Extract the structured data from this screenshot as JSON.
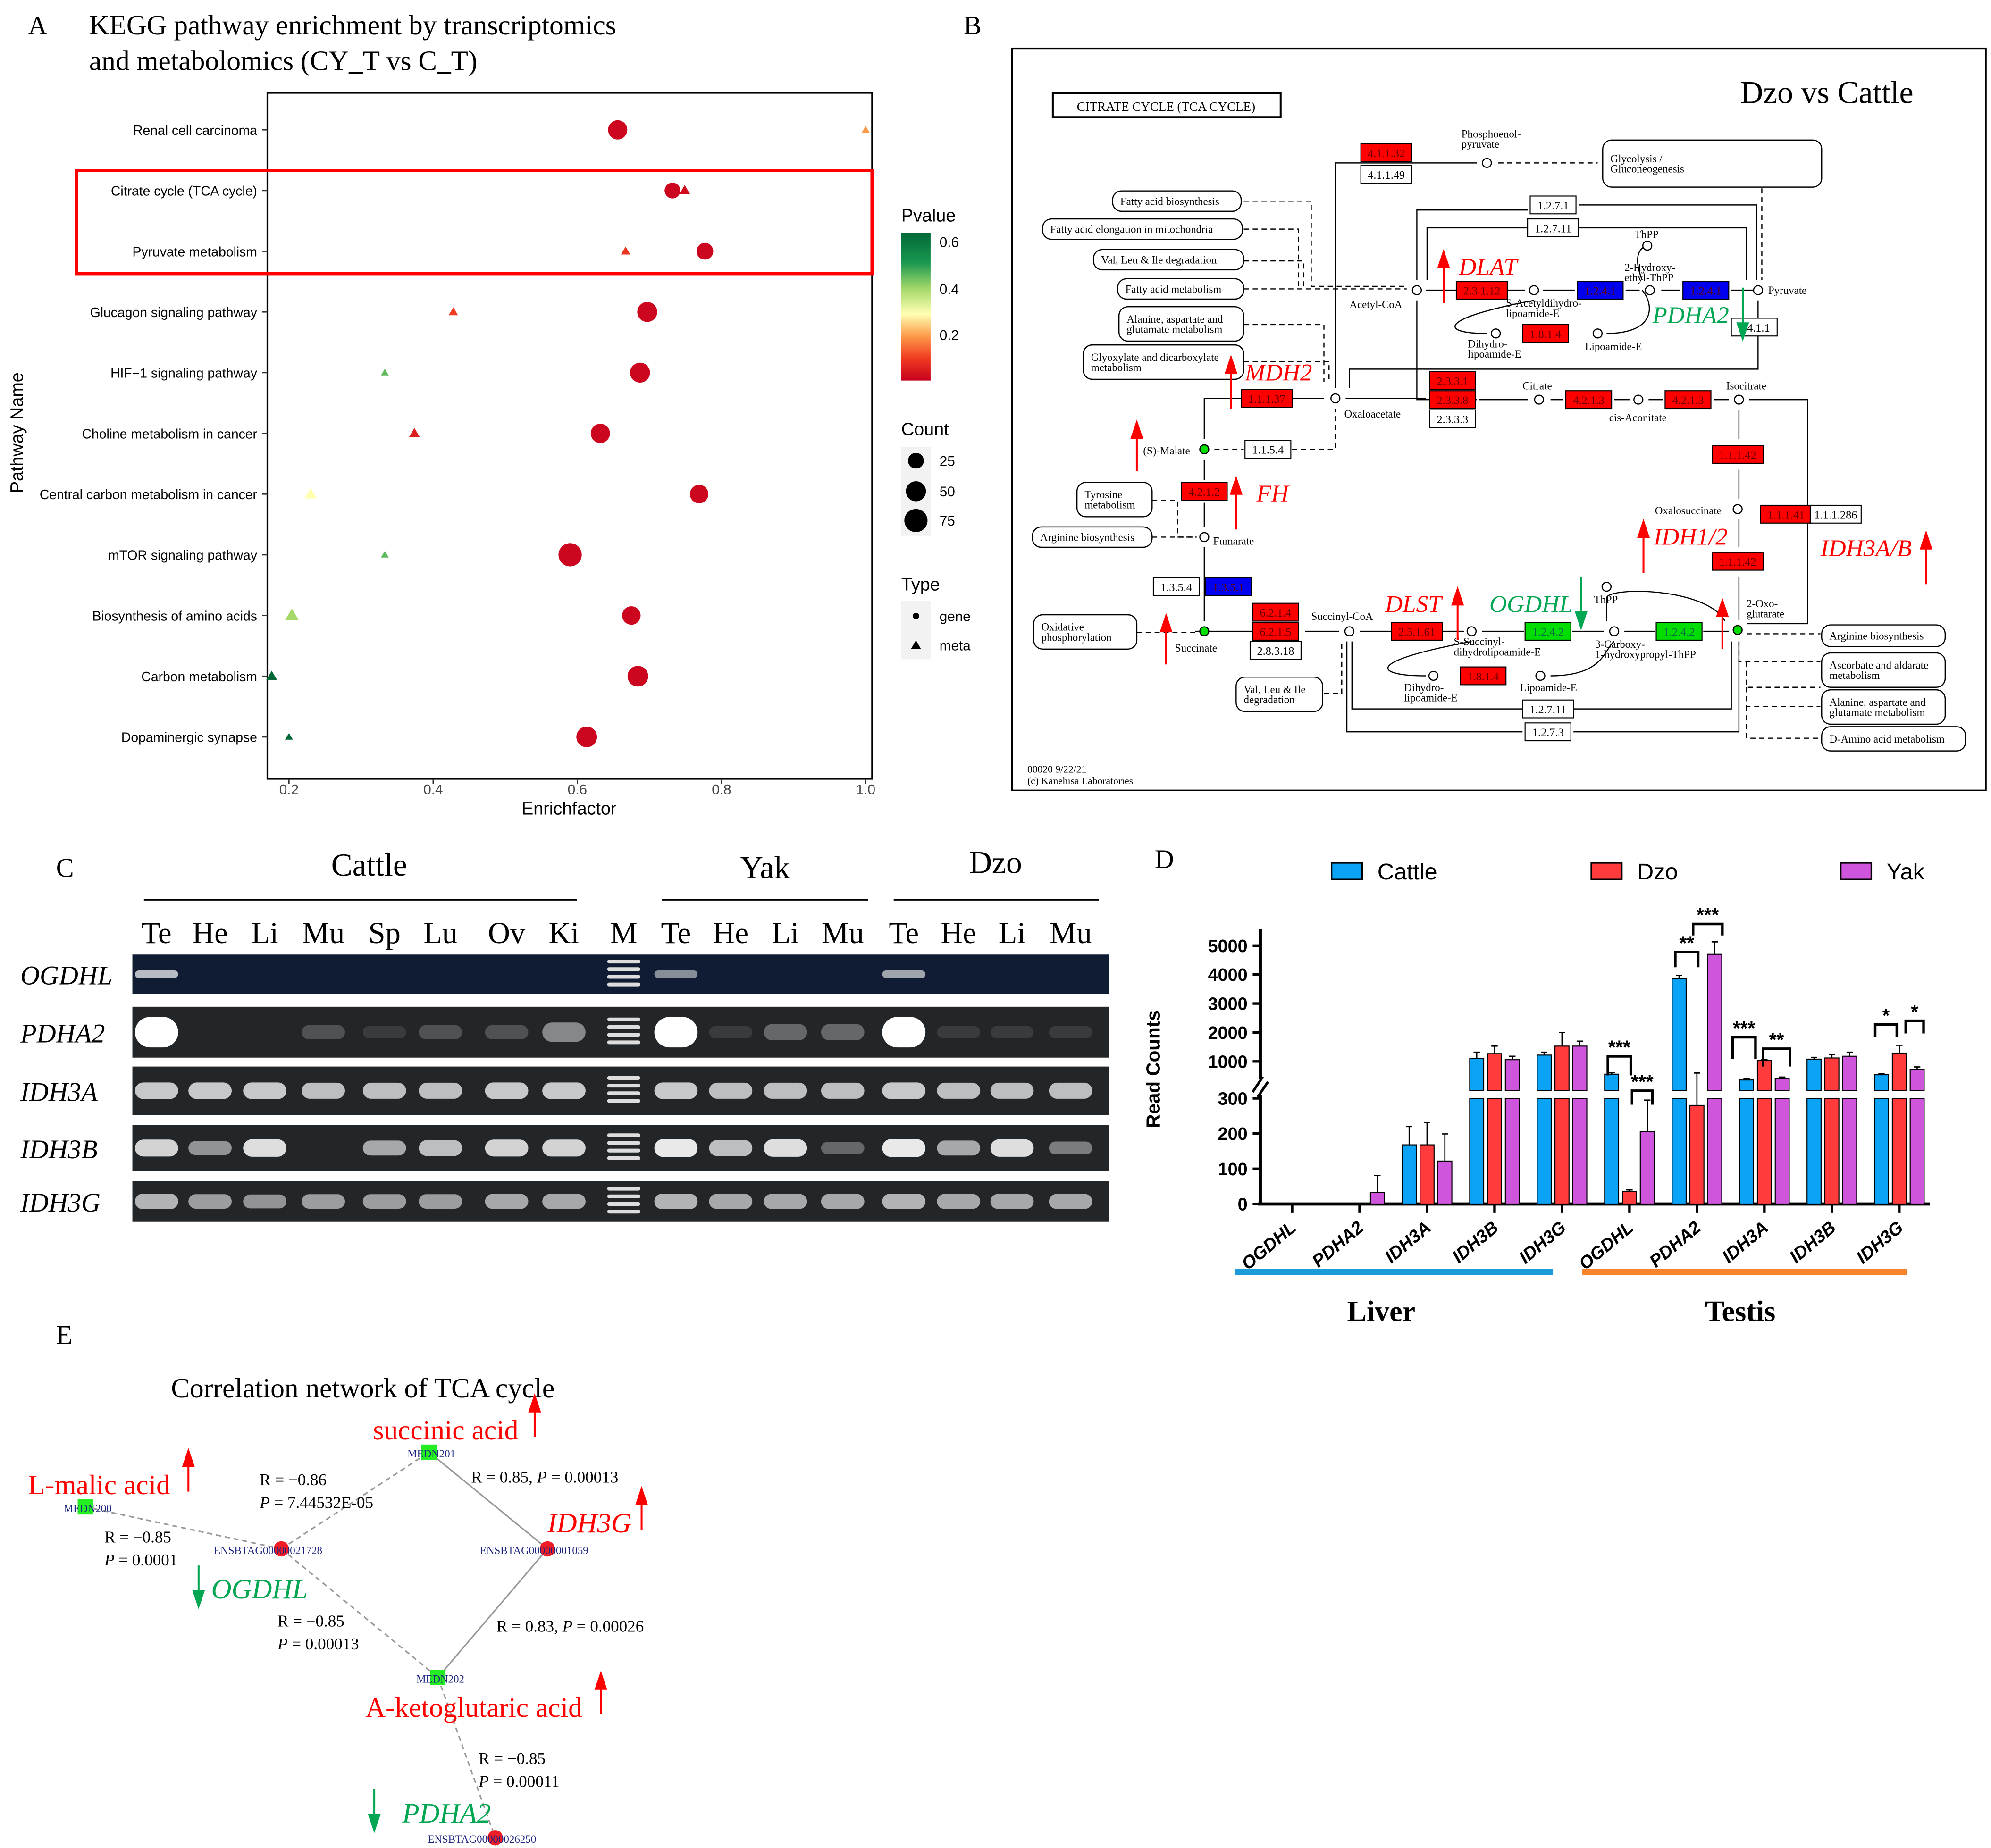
{
  "panel_labels": {
    "a": "A",
    "b": "B",
    "c": "C",
    "d": "D",
    "e": "E"
  },
  "panel_a": {
    "title_line1": "KEGG pathway enrichment by transcriptomics",
    "title_line2": "and metabolomics (CY_T vs C_T)",
    "legend": {
      "pvalue_title": "Pvalue",
      "pvalue_ticks": [
        "0.6",
        "0.4",
        "0.2"
      ],
      "count_title": "Count",
      "count_labels": [
        "25",
        "50",
        "75"
      ],
      "type_title": "Type",
      "type_labels": [
        "gene",
        "meta"
      ]
    }
  },
  "chart_data": [
    {
      "type": "scatter",
      "title": "KEGG pathway enrichment by transcriptomics and metabolomics (CY_T vs C_T)",
      "xlabel": "Enrichfactor",
      "ylabel": "Pathway Name",
      "xlim": [
        0.17,
        1.0
      ],
      "xticks": [
        "0.2",
        "0.4",
        "0.6",
        "0.8",
        "1.0"
      ],
      "grid": false,
      "legend_position": "right",
      "highlighted": [
        "Citrate cycle (TCA cycle)",
        "Pyruvate metabolism"
      ],
      "categories": [
        "Renal cell carcinoma",
        "Citrate cycle (TCA cycle)",
        "Pyruvate metabolism",
        "Glucagon signaling pathway",
        "HIF−1 signaling pathway",
        "Choline metabolism in cancer",
        "Central carbon metabolism in cancer",
        "mTOR signaling pathway",
        "Biosynthesis of amino acids",
        "Carbon metabolism",
        "Dopaminergic synapse"
      ],
      "series": [
        {
          "name": "gene",
          "shape": "circle",
          "points": [
            {
              "x": 0.656,
              "count": 45,
              "pvalue": 0.01
            },
            {
              "x": 0.732,
              "count": 25,
              "pvalue": 0.01
            },
            {
              "x": 0.777,
              "count": 30,
              "pvalue": 0.01
            },
            {
              "x": 0.697,
              "count": 50,
              "pvalue": 0.01
            },
            {
              "x": 0.687,
              "count": 50,
              "pvalue": 0.01
            },
            {
              "x": 0.632,
              "count": 45,
              "pvalue": 0.01
            },
            {
              "x": 0.769,
              "count": 40,
              "pvalue": 0.01
            },
            {
              "x": 0.59,
              "count": 75,
              "pvalue": 0.01
            },
            {
              "x": 0.675,
              "count": 40,
              "pvalue": 0.01
            },
            {
              "x": 0.684,
              "count": 55,
              "pvalue": 0.01
            },
            {
              "x": 0.613,
              "count": 55,
              "pvalue": 0.01
            }
          ]
        },
        {
          "name": "meta",
          "shape": "triangle",
          "points": [
            {
              "x": 1.0,
              "count": 1,
              "pvalue": 0.2
            },
            {
              "x": 0.749,
              "count": 3,
              "pvalue": 0.02
            },
            {
              "x": 0.667,
              "count": 2,
              "pvalue": 0.09
            },
            {
              "x": 0.428,
              "count": 2,
              "pvalue": 0.1
            },
            {
              "x": 0.333,
              "count": 1,
              "pvalue": 0.45
            },
            {
              "x": 0.374,
              "count": 3,
              "pvalue": 0.05
            },
            {
              "x": 0.23,
              "count": 4,
              "pvalue": 0.3
            },
            {
              "x": 0.333,
              "count": 1,
              "pvalue": 0.45
            },
            {
              "x": 0.204,
              "count": 5,
              "pvalue": 0.4
            },
            {
              "x": 0.176,
              "count": 3,
              "pvalue": 0.65
            },
            {
              "x": 0.2,
              "count": 1,
              "pvalue": 0.65
            }
          ]
        }
      ]
    },
    {
      "type": "bar",
      "title": "",
      "xlabel": "",
      "ylabel": "Read Counts",
      "y_axis_break": [
        300,
        300
      ],
      "yticks_lower": [
        "0",
        "100",
        "200",
        "300"
      ],
      "yticks_upper": [
        "1000",
        "2000",
        "3000",
        "4000",
        "5000"
      ],
      "legend_position": "top",
      "categories": [
        "OGDHL",
        "PDHA2",
        "IDH3A",
        "IDH3B",
        "IDH3G",
        "OGDHL",
        "PDHA2",
        "IDH3A",
        "IDH3B",
        "IDH3G"
      ],
      "tissue_groups": [
        {
          "name": "Liver",
          "color": "#1b9bd7"
        },
        {
          "name": "Testis",
          "color": "#f7832b"
        }
      ],
      "series": [
        {
          "name": "Cattle",
          "color": "#0aa3f6",
          "values": [
            0,
            0,
            168,
            1100,
            1220,
            560,
            3850,
            360,
            1080,
            540
          ],
          "errors": [
            0,
            0,
            52,
            220,
            100,
            50,
            120,
            60,
            60,
            30
          ]
        },
        {
          "name": "Dzo",
          "color": "#ff3b3b",
          "values": [
            0,
            0,
            168,
            1270,
            1530,
            35,
            280,
            1030,
            1120,
            1290
          ],
          "errors": [
            0,
            0,
            63,
            260,
            470,
            5,
            320,
            40,
            120,
            270
          ]
        },
        {
          "name": "Yak",
          "color": "#cf56dc",
          "values": [
            0,
            33,
            122,
            1060,
            1530,
            205,
            4700,
            420,
            1180,
            730
          ],
          "errors": [
            0,
            48,
            77,
            120,
            170,
            90,
            430,
            40,
            140,
            80
          ]
        }
      ],
      "significance": [
        {
          "category_index": 5,
          "pair": "Cattle-Dzo",
          "label": "***"
        },
        {
          "category_index": 5,
          "pair": "Dzo-Yak",
          "label": "***"
        },
        {
          "category_index": 6,
          "pair": "Cattle-Dzo",
          "label": "**"
        },
        {
          "category_index": 6,
          "pair": "Dzo-Yak",
          "label": "***"
        },
        {
          "category_index": 7,
          "pair": "Cattle-Dzo",
          "label": "***"
        },
        {
          "category_index": 7,
          "pair": "Dzo-Yak",
          "label": "**"
        },
        {
          "category_index": 9,
          "pair": "Cattle-Dzo",
          "label": "*"
        },
        {
          "category_index": 9,
          "pair": "Dzo-Yak",
          "label": "*"
        }
      ]
    }
  ],
  "panel_b": {
    "map_title": "CITRATE  CYCLE  (TCA CYCLE)",
    "comparison": "Dzo vs Cattle",
    "footer_line1": "00020 9/22/21",
    "footer_line2": "(c) Kanehisa Laboratories",
    "colors": {
      "up": "#ff0000",
      "down": "#00dd00",
      "other": "#0000ee",
      "none": "#ffffff"
    },
    "enzymes": [
      {
        "ec": "4.1.1.32",
        "state": "up"
      },
      {
        "ec": "4.1.1.49",
        "state": "none"
      },
      {
        "ec": "1.2.7.1",
        "state": "none"
      },
      {
        "ec": "1.2.7.11",
        "state": "none"
      },
      {
        "ec": "2.3.1.12",
        "state": "up"
      },
      {
        "ec": "1.2.4.1",
        "state": "other"
      },
      {
        "ec": "1.2.4.1",
        "state": "other"
      },
      {
        "ec": "1.8.1.4",
        "state": "up"
      },
      {
        "ec": "6.4.1.1",
        "state": "none"
      },
      {
        "ec": "2.3.3.1",
        "state": "up"
      },
      {
        "ec": "2.3.3.8",
        "state": "up"
      },
      {
        "ec": "2.3.3.3",
        "state": "none"
      },
      {
        "ec": "4.2.1.3",
        "state": "up"
      },
      {
        "ec": "4.2.1.3",
        "state": "up"
      },
      {
        "ec": "1.1.1.37",
        "state": "up"
      },
      {
        "ec": "1.1.5.4",
        "state": "none"
      },
      {
        "ec": "1.1.1.42",
        "state": "up"
      },
      {
        "ec": "1.1.1.41",
        "state": "up"
      },
      {
        "ec": "1.1.1.286",
        "state": "none"
      },
      {
        "ec": "1.1.1.42",
        "state": "up"
      },
      {
        "ec": "4.2.1.2",
        "state": "up"
      },
      {
        "ec": "1.3.5.4",
        "state": "none"
      },
      {
        "ec": "1.3.5.1",
        "state": "other"
      },
      {
        "ec": "6.2.1.4",
        "state": "up"
      },
      {
        "ec": "6.2.1.5",
        "state": "up"
      },
      {
        "ec": "2.8.3.18",
        "state": "none"
      },
      {
        "ec": "2.3.1.61",
        "state": "up"
      },
      {
        "ec": "1.2.4.2",
        "state": "down"
      },
      {
        "ec": "1.2.4.2",
        "state": "down"
      },
      {
        "ec": "1.8.1.4",
        "state": "up"
      },
      {
        "ec": "1.2.7.11",
        "state": "none"
      },
      {
        "ec": "1.2.7.3",
        "state": "none"
      }
    ],
    "compounds": [
      {
        "name": "Phosphoenol-|pyruvate",
        "highlight": false
      },
      {
        "name": "Acetyl-CoA",
        "highlight": false
      },
      {
        "name": "Pyruvate",
        "highlight": false
      },
      {
        "name": "ThPP",
        "highlight": false
      },
      {
        "name": "2-Hydroxy-|ethyl-ThPP",
        "highlight": false
      },
      {
        "name": "S-Acetyldihydro-|lipoamide-E",
        "highlight": false
      },
      {
        "name": "Dihydro-|lipoamide-E",
        "highlight": false
      },
      {
        "name": "Lipoamide-E",
        "highlight": false
      },
      {
        "name": "Oxaloacetate",
        "highlight": false
      },
      {
        "name": "Citrate",
        "highlight": false
      },
      {
        "name": "cis-Aconitate",
        "highlight": false
      },
      {
        "name": "Isocitrate",
        "highlight": false
      },
      {
        "name": "(S)-Malate",
        "highlight": true
      },
      {
        "name": "Fumarate",
        "highlight": false
      },
      {
        "name": "Oxalosuccinate",
        "highlight": false
      },
      {
        "name": "2-Oxo-|glutarate",
        "highlight": true
      },
      {
        "name": "Succinate",
        "highlight": true
      },
      {
        "name": "Succinyl-CoA",
        "highlight": false
      },
      {
        "name": "S-Succinyl-|dihydrolipoamide-E",
        "highlight": false
      },
      {
        "name": "3-Carboxy-|1-hydroxypropyl-ThPP",
        "highlight": false
      },
      {
        "name": "ThPP",
        "highlight": false
      },
      {
        "name": "Dihydro-|lipoamide-E",
        "highlight": false
      },
      {
        "name": "Lipoamide-E",
        "highlight": false
      }
    ],
    "pathways": [
      "Glycolysis /|Gluconeogenesis",
      "Fatty acid biosynthesis",
      "Fatty acid elongation in mitochondria",
      "Val, Leu & Ile degradation",
      "Fatty acid metabolism",
      "Alanine, aspartate and|glutamate metabolism",
      "Glyoxylate and dicarboxylate|metabolism",
      "Tyrosine|metabolism",
      "Arginine biosynthesis",
      "Oxidative|phosphorylation",
      "Val, Leu & Ile|degradation",
      "Arginine biosynthesis",
      "Ascorbate and aldarate|metabolism",
      "Alanine, aspartate and|glutamate metabolism",
      "D-Amino acid metabolism"
    ],
    "gene_annotations": [
      {
        "gene": "DLAT",
        "direction": "up"
      },
      {
        "gene": "PDHA2",
        "direction": "down"
      },
      {
        "gene": "MDH2",
        "direction": "up"
      },
      {
        "gene": "FH",
        "direction": "up"
      },
      {
        "gene": "IDH1/2",
        "direction": "up"
      },
      {
        "gene": "IDH3A/B",
        "direction": "up"
      },
      {
        "gene": "DLST",
        "direction": "up"
      },
      {
        "gene": "OGDHL",
        "direction": "down"
      }
    ]
  },
  "panel_c": {
    "species": [
      "Cattle",
      "Yak",
      "Dzo"
    ],
    "lanes": [
      "Te",
      "He",
      "Li",
      "Mu",
      "Sp",
      "Lu",
      "Ov",
      "Ki",
      "M",
      "Te",
      "He",
      "Li",
      "Mu",
      "Te",
      "He",
      "Li",
      "Mu"
    ],
    "genes": [
      {
        "name": "OGDHL",
        "band_intensity": [
          0.7,
          0,
          0,
          0,
          0,
          0,
          0,
          0,
          -1,
          0.5,
          0,
          0,
          0,
          0.6,
          0,
          0,
          0
        ]
      },
      {
        "name": "PDHA2",
        "band_intensity": [
          1,
          0,
          0,
          0.2,
          0.1,
          0.2,
          0.2,
          0.45,
          -1,
          1,
          0.1,
          0.3,
          0.3,
          1,
          0.1,
          0.1,
          0.1
        ]
      },
      {
        "name": "IDH3A",
        "band_intensity": [
          0.75,
          0.75,
          0.75,
          0.7,
          0.7,
          0.7,
          0.75,
          0.75,
          -1,
          0.75,
          0.7,
          0.7,
          0.7,
          0.75,
          0.7,
          0.7,
          0.7
        ]
      },
      {
        "name": "IDH3B",
        "band_intensity": [
          0.8,
          0.5,
          0.85,
          0,
          0.6,
          0.7,
          0.8,
          0.8,
          -1,
          0.9,
          0.7,
          0.85,
          0.3,
          0.9,
          0.6,
          0.85,
          0.4
        ]
      },
      {
        "name": "IDH3G",
        "band_intensity": [
          0.65,
          0.55,
          0.5,
          0.55,
          0.55,
          0.55,
          0.6,
          0.6,
          -1,
          0.65,
          0.6,
          0.6,
          0.6,
          0.65,
          0.6,
          0.6,
          0.6
        ]
      }
    ]
  },
  "panel_e": {
    "title": "Correlation network of TCA cycle",
    "nodes": [
      {
        "id": "MEDN201",
        "kind": "metabolite",
        "label": "succinic acid",
        "direction": "up"
      },
      {
        "id": "MEDN200",
        "kind": "metabolite",
        "label": "L-malic acid",
        "direction": "up"
      },
      {
        "id": "ENSBTAG00000021728",
        "kind": "gene",
        "label": "OGDHL",
        "direction": "down"
      },
      {
        "id": "ENSBTAG00000001059",
        "kind": "gene",
        "label": "IDH3G",
        "direction": "up"
      },
      {
        "id": "MEDN202",
        "kind": "metabolite",
        "label": "A-ketoglutaric acid",
        "direction": "up"
      },
      {
        "id": "ENSBTAG00000026250",
        "kind": "gene",
        "label": "PDHA2",
        "direction": "down"
      }
    ],
    "edges": [
      {
        "from": "MEDN200",
        "to": "ENSBTAG00000021728",
        "r": "−0.85",
        "p": "0.0001",
        "sign": "negative"
      },
      {
        "from": "ENSBTAG00000021728",
        "to": "MEDN201",
        "r": "−0.86",
        "p": "7.44532E-05",
        "sign": "negative"
      },
      {
        "from": "MEDN201",
        "to": "ENSBTAG00000001059",
        "r": "0.85",
        "p": "0.00013",
        "sign": "positive"
      },
      {
        "from": "ENSBTAG00000001059",
        "to": "MEDN202",
        "r": "0.83",
        "p": "0.00026",
        "sign": "positive"
      },
      {
        "from": "ENSBTAG00000021728",
        "to": "MEDN202",
        "r": "−0.85",
        "p": "0.00013",
        "sign": "negative"
      },
      {
        "from": "MEDN202",
        "to": "ENSBTAG00000026250",
        "r": "−0.85",
        "p": "0.00011",
        "sign": "negative"
      }
    ]
  }
}
